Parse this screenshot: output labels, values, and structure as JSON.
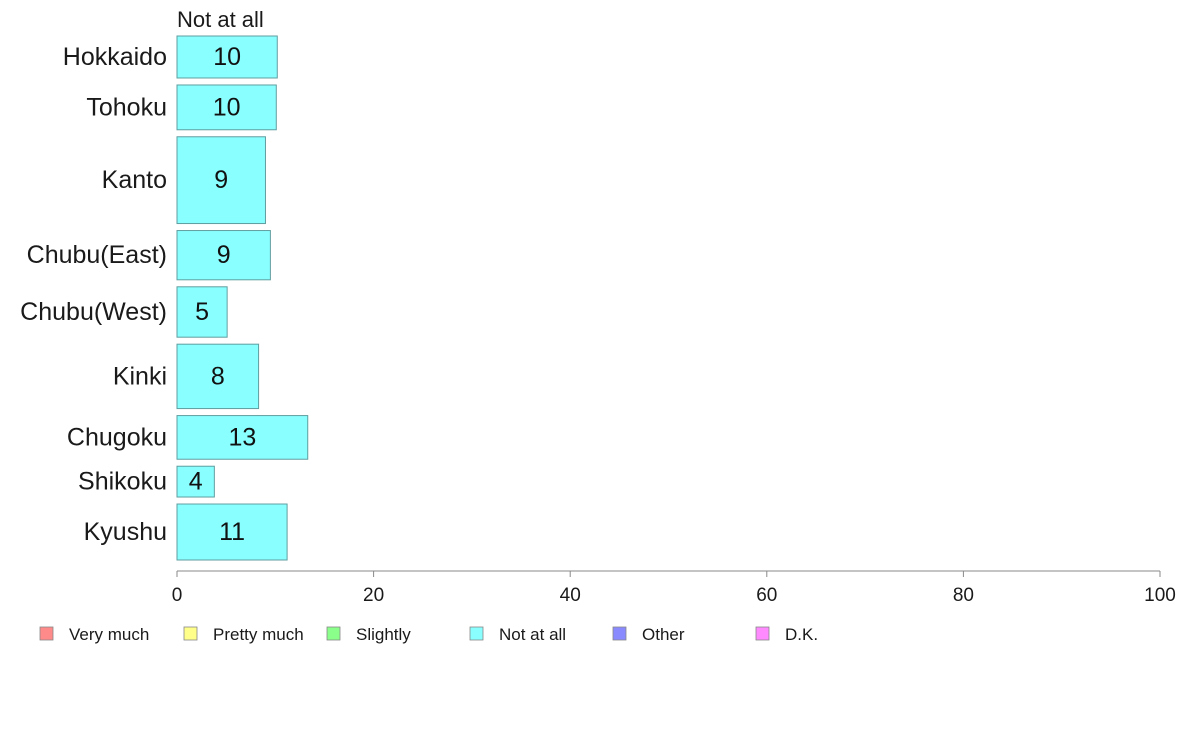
{
  "chart_data": {
    "type": "bar",
    "orientation": "horizontal",
    "stacked": true,
    "series_title": "Not at all",
    "categories": [
      "Hokkaido",
      "Tohoku",
      "Kanto",
      "Chubu(East)",
      "Chubu(West)",
      "Kinki",
      "Chugoku",
      "Shikoku",
      "Kyushu"
    ],
    "category_weights": [
      0.75,
      0.8,
      1.55,
      0.88,
      0.9,
      1.15,
      0.78,
      0.55,
      1.0
    ],
    "series": [
      {
        "name": "Very much",
        "color": "#ff8a8a",
        "values": [
          0,
          0,
          0,
          0,
          0,
          0,
          0,
          0,
          0
        ]
      },
      {
        "name": "Pretty much",
        "color": "#ffff8a",
        "values": [
          0,
          0,
          0,
          0,
          0,
          0,
          0,
          0,
          0
        ]
      },
      {
        "name": "Slightly",
        "color": "#8aff8a",
        "values": [
          0,
          0,
          0,
          0,
          0,
          0,
          0,
          0,
          0
        ]
      },
      {
        "name": "Not at all",
        "color": "#8affff",
        "values": [
          10.2,
          10.1,
          9.0,
          9.5,
          5.1,
          8.3,
          13.3,
          3.8,
          11.2
        ],
        "labels": [
          "10",
          "10",
          "9",
          "9",
          "5",
          "8",
          "13",
          "4",
          "11"
        ]
      },
      {
        "name": "Other",
        "color": "#8a8aff",
        "values": [
          0,
          0,
          0,
          0,
          0,
          0,
          0,
          0,
          0
        ]
      },
      {
        "name": "D.K.",
        "color": "#ff8aff",
        "values": [
          0,
          0,
          0,
          0,
          0,
          0,
          0,
          0,
          0
        ]
      }
    ],
    "xlim": [
      0,
      100
    ],
    "xticks": [
      0,
      20,
      40,
      60,
      80,
      100
    ],
    "xlabel": "",
    "ylabel": "",
    "grid": false,
    "legend_position": "bottom"
  }
}
